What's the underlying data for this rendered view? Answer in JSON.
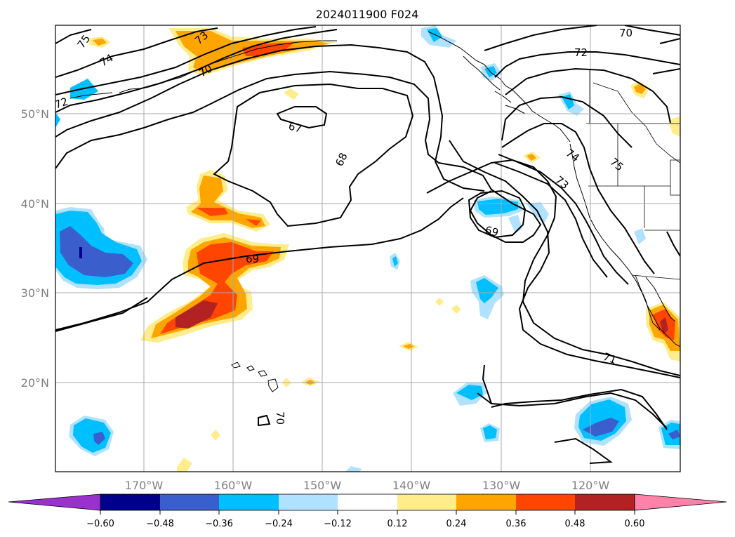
{
  "title": "2024011900 F024",
  "lat_labels": [
    "50°N",
    "40°N",
    "30°N",
    "20°N"
  ],
  "lon_labels": [
    "170°W",
    "160°W",
    "150°W",
    "140°W",
    "130°W",
    "120°W"
  ],
  "colorbar": {
    "ticks": [
      "−0.60",
      "−0.48",
      "−0.36",
      "−0.24",
      "−0.12",
      "0.12",
      "0.24",
      "0.36",
      "0.48",
      "0.60"
    ],
    "colors": [
      "#9932cc",
      "#00008b",
      "#3a5fcd",
      "#00bfff",
      "#b0e2ff",
      "#ffffff",
      "#ffec8b",
      "#ffa500",
      "#ff4500",
      "#b22222",
      "#ff82ab"
    ]
  },
  "contour_labels": [
    "75",
    "73",
    "74",
    "70",
    "72",
    "67",
    "68",
    "69",
    "70",
    "72",
    "74",
    "73",
    "75",
    "71",
    "69",
    "70"
  ],
  "shade_colors": {
    "light_blue": "#b0e2ff",
    "blue": "#00bfff",
    "royal": "#3a5fcd",
    "yellow": "#ffec8b",
    "orange": "#ffa500",
    "red": "#ff4500",
    "brick": "#b22222"
  }
}
